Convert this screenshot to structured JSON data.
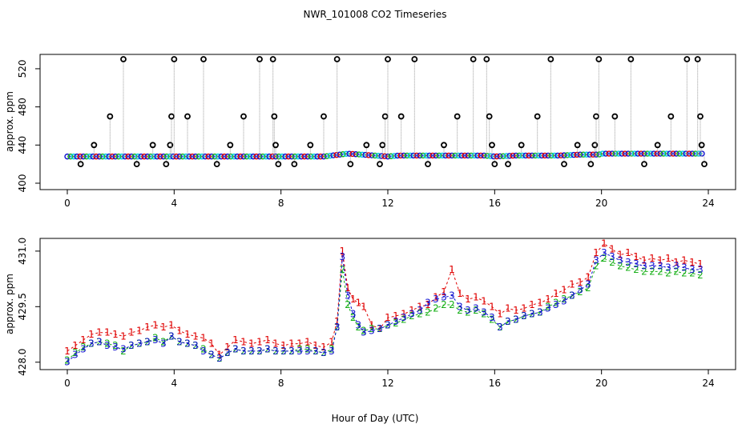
{
  "title": "NWR_101008  CO2 Timeseries",
  "xlabel": "Hour of Day (UTC)",
  "colors": {
    "line": "#9a9a9a",
    "s1": "#e00000",
    "s2": "#18b018",
    "s3": "#1010d0",
    "fill": "#00c8e0",
    "ring": "#000000"
  },
  "chart_data": [
    {
      "type": "scatter",
      "ylabel": "approx. ppm",
      "xlim": [
        0,
        24
      ],
      "ylim": [
        400,
        530
      ],
      "x_ticks": [
        0,
        4,
        8,
        12,
        16,
        20,
        24
      ],
      "y_ticks": [
        400,
        440,
        480,
        520
      ],
      "series": [
        {
          "x": [
            0.5,
            1.0,
            1.6,
            2.1,
            2.6,
            3.2,
            3.7,
            3.85,
            3.9,
            4.0,
            4.5,
            5.1,
            5.6,
            6.1,
            6.6,
            7.2,
            7.7,
            7.75,
            7.8,
            7.9,
            8.5,
            9.1,
            9.6,
            10.1,
            10.6,
            11.2,
            11.7,
            11.8,
            11.9,
            12.0,
            12.5,
            13.0,
            13.5,
            14.1,
            14.6,
            15.2,
            15.7,
            15.8,
            15.9,
            16.0,
            16.5,
            17.0,
            17.6,
            18.1,
            18.6,
            19.1,
            19.6,
            19.75,
            19.8,
            19.9,
            20.5,
            21.1,
            21.6,
            22.1,
            22.6,
            23.2,
            23.6,
            23.7,
            23.75,
            23.85
          ],
          "y": [
            420,
            440,
            470,
            530,
            420,
            440,
            420,
            440,
            470,
            530,
            470,
            530,
            420,
            440,
            470,
            530,
            530,
            470,
            440,
            420,
            420,
            440,
            470,
            530,
            420,
            440,
            420,
            440,
            470,
            530,
            470,
            530,
            420,
            440,
            470,
            530,
            530,
            470,
            440,
            420,
            420,
            440,
            470,
            530,
            420,
            440,
            420,
            440,
            470,
            530,
            470,
            530,
            420,
            440,
            470,
            530,
            530,
            470,
            440,
            420
          ]
        }
      ],
      "baseline": {
        "x": [
          0,
          0.8,
          1.6,
          2.4,
          3.2,
          3.8,
          4.0,
          4.8,
          5.6,
          6.4,
          7.2,
          8.0,
          8.8,
          9.6,
          10.2,
          10.5,
          11.0,
          11.5,
          12.0,
          12.4,
          13.2,
          14.0,
          14.8,
          15.6,
          16.0,
          16.8,
          17.6,
          18.4,
          19.2,
          19.9,
          20.0,
          20.8,
          21.6,
          22.4,
          23.2,
          23.8
        ],
        "y": [
          428,
          428,
          428,
          428,
          428,
          428,
          428,
          428,
          428,
          428,
          428,
          428,
          428,
          428,
          430,
          431,
          430,
          429,
          428,
          429,
          429,
          429,
          429,
          429,
          428,
          429,
          429,
          429,
          430,
          430,
          431,
          431,
          431,
          431,
          431,
          431
        ]
      }
    },
    {
      "type": "line",
      "ylabel": "approx. ppm",
      "xlim": [
        0,
        24
      ],
      "ylim": [
        427.8,
        431.3
      ],
      "x_ticks": [
        0,
        4,
        8,
        12,
        16,
        20,
        24
      ],
      "y_ticks": [
        428.0,
        429.5,
        431.0
      ],
      "series": [
        {
          "name": "1",
          "x": [
            0.0,
            0.3,
            0.6,
            0.9,
            1.2,
            1.5,
            1.8,
            2.1,
            2.4,
            2.7,
            3.0,
            3.3,
            3.6,
            3.9,
            4.2,
            4.5,
            4.8,
            5.1,
            5.4,
            5.7,
            6.0,
            6.3,
            6.6,
            6.9,
            7.2,
            7.5,
            7.8,
            8.1,
            8.4,
            8.7,
            9.0,
            9.3,
            9.6,
            9.9,
            10.1,
            10.3,
            10.5,
            10.7,
            10.9,
            11.1,
            11.4,
            11.7,
            12.0,
            12.3,
            12.6,
            12.9,
            13.2,
            13.5,
            13.8,
            14.1,
            14.4,
            14.7,
            15.0,
            15.3,
            15.6,
            15.9,
            16.2,
            16.5,
            16.8,
            17.1,
            17.4,
            17.7,
            18.0,
            18.3,
            18.6,
            18.9,
            19.2,
            19.5,
            19.8,
            20.1,
            20.4,
            20.7,
            21.0,
            21.3,
            21.6,
            21.9,
            22.2,
            22.5,
            22.8,
            23.1,
            23.4,
            23.7
          ],
          "y": [
            428.3,
            428.45,
            428.6,
            428.75,
            428.8,
            428.8,
            428.75,
            428.7,
            428.8,
            428.85,
            428.95,
            429.0,
            428.95,
            429.0,
            428.85,
            428.75,
            428.7,
            428.65,
            428.5,
            428.2,
            428.4,
            428.6,
            428.55,
            428.5,
            428.55,
            428.6,
            428.5,
            428.45,
            428.5,
            428.5,
            428.55,
            428.45,
            428.4,
            428.55,
            429.1,
            431.0,
            430.0,
            429.7,
            429.6,
            429.5,
            429.0,
            428.9,
            429.2,
            429.25,
            429.3,
            429.4,
            429.5,
            429.55,
            429.75,
            429.9,
            430.5,
            429.85,
            429.7,
            429.75,
            429.65,
            429.5,
            429.3,
            429.45,
            429.4,
            429.45,
            429.55,
            429.6,
            429.7,
            429.85,
            429.95,
            430.1,
            430.15,
            430.3,
            430.95,
            431.2,
            431.05,
            430.9,
            430.95,
            430.85,
            430.75,
            430.8,
            430.75,
            430.8,
            430.7,
            430.75,
            430.7,
            430.65
          ]
        },
        {
          "name": "2",
          "x": [
            0.0,
            0.3,
            0.6,
            0.9,
            1.2,
            1.5,
            1.8,
            2.1,
            2.4,
            2.7,
            3.0,
            3.3,
            3.6,
            3.9,
            4.2,
            4.5,
            4.8,
            5.1,
            5.4,
            5.7,
            6.0,
            6.3,
            6.6,
            6.9,
            7.2,
            7.5,
            7.8,
            8.1,
            8.4,
            8.7,
            9.0,
            9.3,
            9.6,
            9.9,
            10.1,
            10.3,
            10.5,
            10.7,
            10.9,
            11.1,
            11.4,
            11.7,
            12.0,
            12.3,
            12.6,
            12.9,
            13.2,
            13.5,
            13.8,
            14.1,
            14.4,
            14.7,
            15.0,
            15.3,
            15.6,
            15.9,
            16.2,
            16.5,
            16.8,
            17.1,
            17.4,
            17.7,
            18.0,
            18.3,
            18.6,
            18.9,
            19.2,
            19.5,
            19.8,
            20.1,
            20.4,
            20.7,
            21.0,
            21.3,
            21.6,
            21.9,
            22.2,
            22.5,
            22.8,
            23.1,
            23.4,
            23.7
          ],
          "y": [
            428.05,
            428.25,
            428.4,
            428.5,
            428.55,
            428.5,
            428.45,
            428.3,
            428.45,
            428.5,
            428.55,
            428.65,
            428.55,
            428.7,
            428.55,
            428.5,
            428.45,
            428.35,
            428.2,
            428.1,
            428.25,
            428.35,
            428.3,
            428.3,
            428.3,
            428.35,
            428.3,
            428.3,
            428.3,
            428.35,
            428.35,
            428.3,
            428.25,
            428.35,
            428.95,
            430.5,
            429.55,
            429.2,
            428.95,
            428.85,
            428.9,
            428.9,
            429.0,
            429.05,
            429.15,
            429.25,
            429.3,
            429.35,
            429.45,
            429.55,
            429.55,
            429.4,
            429.35,
            429.4,
            429.3,
            429.15,
            428.95,
            429.1,
            429.15,
            429.25,
            429.3,
            429.35,
            429.5,
            429.6,
            429.7,
            429.8,
            429.9,
            430.0,
            430.6,
            430.8,
            430.7,
            430.6,
            430.55,
            430.5,
            430.45,
            430.45,
            430.45,
            430.4,
            430.45,
            430.4,
            430.4,
            430.35
          ]
        },
        {
          "name": "3",
          "x": [
            0.0,
            0.3,
            0.6,
            0.9,
            1.2,
            1.5,
            1.8,
            2.1,
            2.4,
            2.7,
            3.0,
            3.3,
            3.6,
            3.9,
            4.2,
            4.5,
            4.8,
            5.1,
            5.4,
            5.7,
            6.0,
            6.3,
            6.6,
            6.9,
            7.2,
            7.5,
            7.8,
            8.1,
            8.4,
            8.7,
            9.0,
            9.3,
            9.6,
            9.9,
            10.1,
            10.3,
            10.5,
            10.7,
            10.9,
            11.1,
            11.4,
            11.7,
            12.0,
            12.3,
            12.6,
            12.9,
            13.2,
            13.5,
            13.8,
            14.1,
            14.4,
            14.7,
            15.0,
            15.3,
            15.6,
            15.9,
            16.2,
            16.5,
            16.8,
            17.1,
            17.4,
            17.7,
            18.0,
            18.3,
            18.6,
            18.9,
            19.2,
            19.5,
            19.8,
            20.1,
            20.4,
            20.7,
            21.0,
            21.3,
            21.6,
            21.9,
            22.2,
            22.5,
            22.8,
            23.1,
            23.4,
            23.7
          ],
          "y": [
            428.0,
            428.2,
            428.35,
            428.5,
            428.55,
            428.45,
            428.4,
            428.35,
            428.45,
            428.5,
            428.55,
            428.6,
            428.5,
            428.7,
            428.55,
            428.5,
            428.45,
            428.3,
            428.2,
            428.1,
            428.25,
            428.35,
            428.3,
            428.3,
            428.3,
            428.35,
            428.3,
            428.3,
            428.3,
            428.3,
            428.3,
            428.3,
            428.25,
            428.3,
            428.95,
            430.85,
            429.8,
            429.3,
            429.0,
            428.8,
            428.85,
            428.9,
            429.0,
            429.1,
            429.2,
            429.3,
            429.4,
            429.6,
            429.7,
            429.75,
            429.8,
            429.5,
            429.4,
            429.45,
            429.35,
            429.2,
            428.95,
            429.1,
            429.15,
            429.25,
            429.3,
            429.35,
            429.45,
            429.55,
            429.65,
            429.8,
            429.95,
            430.1,
            430.75,
            430.95,
            430.85,
            430.75,
            430.7,
            430.65,
            430.6,
            430.6,
            430.6,
            430.55,
            430.6,
            430.55,
            430.5,
            430.5
          ]
        }
      ]
    }
  ]
}
